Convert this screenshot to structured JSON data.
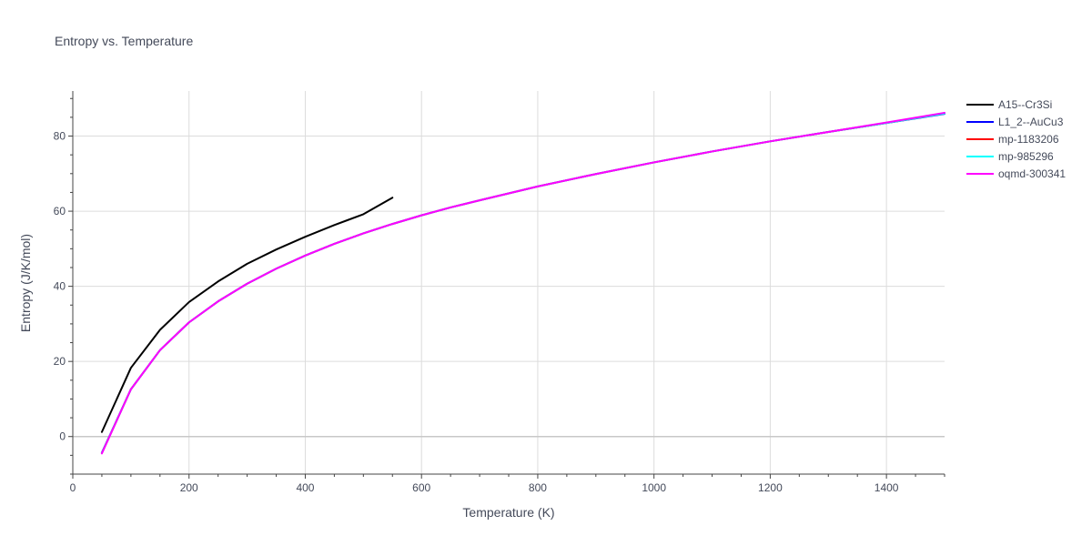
{
  "chart_data": {
    "type": "line",
    "title": "Entropy vs. Temperature",
    "xlabel": "Temperature (K)",
    "ylabel": "Entropy (J/K/mol)",
    "xlim": [
      0,
      1500
    ],
    "ylim": [
      -10,
      92
    ],
    "x_ticks": [
      0,
      200,
      400,
      600,
      800,
      1000,
      1200,
      1400
    ],
    "y_ticks": [
      0,
      20,
      40,
      60,
      80
    ],
    "grid": true,
    "legend_position": "top-right",
    "series": [
      {
        "name": "A15--Cr3Si",
        "color": "#000000",
        "x": [
          50,
          100,
          150,
          200,
          250,
          300,
          350,
          400,
          450,
          500,
          550
        ],
        "y": [
          1.2,
          18.3,
          28.4,
          35.8,
          41.3,
          46.0,
          49.8,
          53.2,
          56.3,
          59.2,
          63.6
        ]
      },
      {
        "name": "L1_2--AuCu3",
        "color": "#0000ff",
        "x": [
          50,
          100,
          150,
          200,
          250,
          300,
          350,
          400,
          450,
          500,
          550,
          600,
          650,
          700,
          800,
          900,
          1000,
          1100,
          1200,
          1300,
          1400,
          1500
        ],
        "y": [
          -4.3,
          12.6,
          23.0,
          30.4,
          36.0,
          40.7,
          44.7,
          48.2,
          51.3,
          54.1,
          56.6,
          58.9,
          61.0,
          62.9,
          66.6,
          69.9,
          73.0,
          75.9,
          78.6,
          81.1,
          83.5,
          85.9
        ]
      },
      {
        "name": "mp-1183206",
        "color": "#ff0000",
        "x": [
          50,
          100,
          150,
          200,
          250,
          300,
          350,
          400,
          450,
          500,
          550,
          600,
          650,
          700,
          800,
          900,
          1000,
          1100,
          1200,
          1300,
          1400,
          1500
        ],
        "y": [
          -4.4,
          12.6,
          23.0,
          30.4,
          36.0,
          40.7,
          44.7,
          48.2,
          51.3,
          54.1,
          56.6,
          58.9,
          61.0,
          62.9,
          66.6,
          69.9,
          73.0,
          75.9,
          78.6,
          81.1,
          83.5,
          86.0
        ]
      },
      {
        "name": "mp-985296",
        "color": "#00ffff",
        "x": [
          50,
          100,
          150,
          200,
          250,
          300,
          350,
          400,
          450,
          500,
          550,
          600,
          650,
          700,
          800,
          900,
          1000,
          1100,
          1200,
          1300,
          1400,
          1500
        ],
        "y": [
          -4.4,
          12.6,
          23.0,
          30.4,
          36.0,
          40.7,
          44.7,
          48.2,
          51.3,
          54.1,
          56.6,
          58.9,
          61.0,
          62.9,
          66.6,
          69.9,
          73.0,
          75.9,
          78.6,
          81.1,
          83.5,
          86.0
        ]
      },
      {
        "name": "oqmd-300341",
        "color": "#ff00ff",
        "x": [
          50,
          100,
          150,
          200,
          250,
          300,
          350,
          400,
          450,
          500,
          550,
          600,
          650,
          700,
          800,
          900,
          1000,
          1100,
          1200,
          1300,
          1400,
          1500
        ],
        "y": [
          -4.5,
          12.6,
          23.0,
          30.4,
          36.0,
          40.7,
          44.7,
          48.2,
          51.3,
          54.1,
          56.6,
          58.9,
          61.0,
          62.9,
          66.6,
          69.9,
          73.0,
          75.9,
          78.6,
          81.1,
          83.6,
          86.2
        ]
      }
    ]
  }
}
